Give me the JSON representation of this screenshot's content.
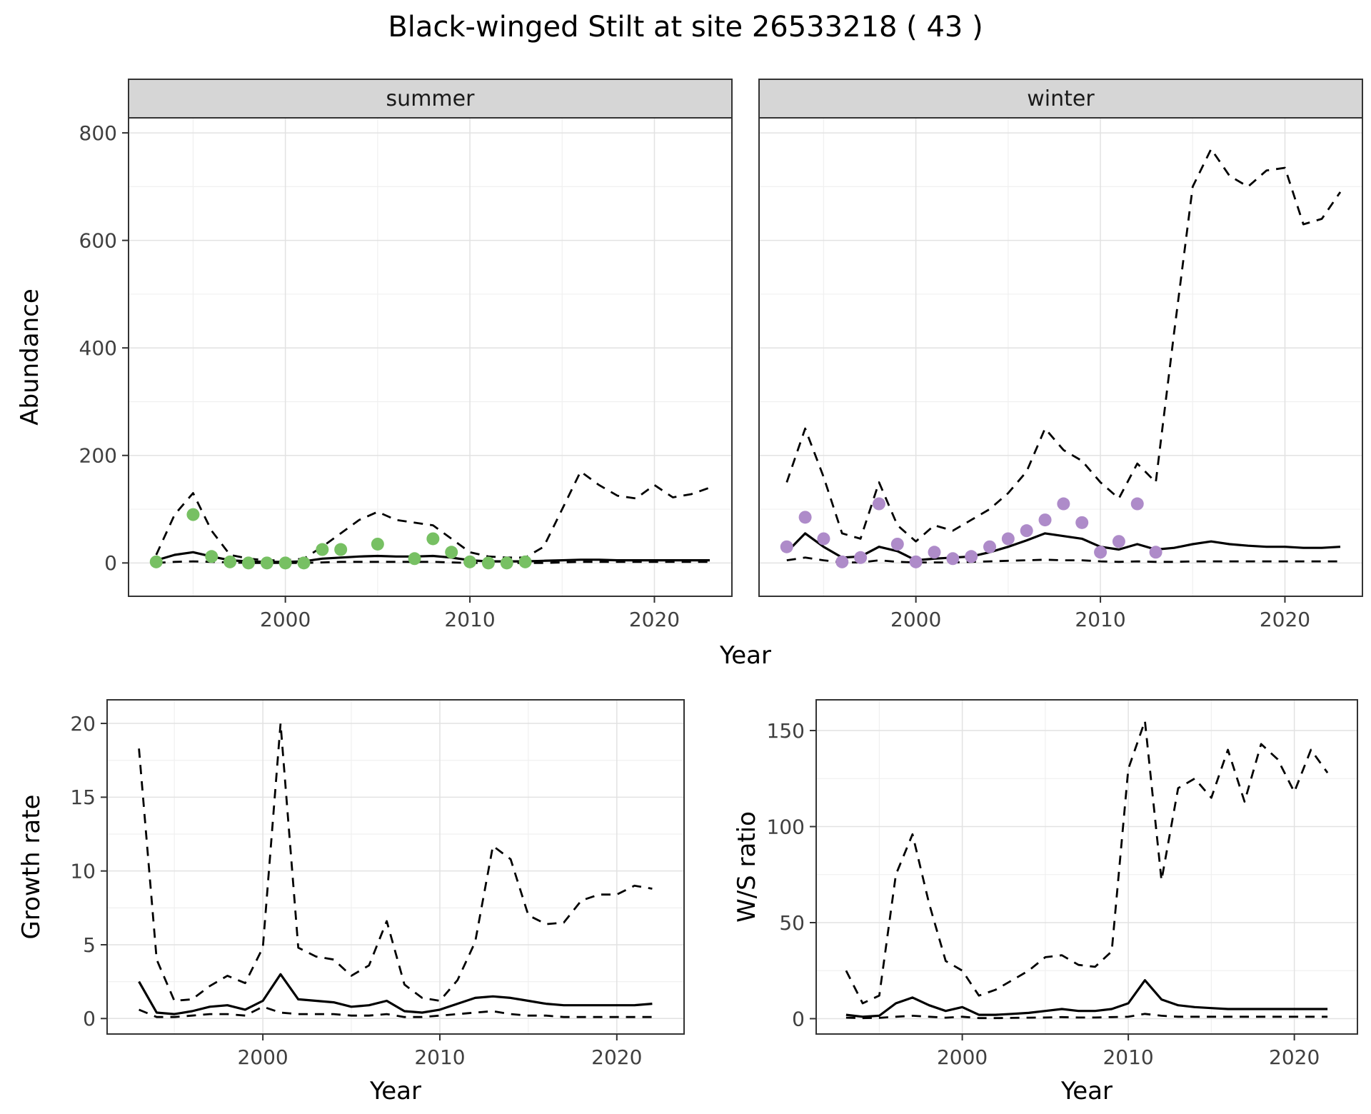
{
  "title": "Black-winged Stilt at site 26533218 ( 43 )",
  "colors": {
    "line": "#000000",
    "panel_border": "#333333",
    "strip_background": "#d6d6d6",
    "grid_major": "#e2e2e2",
    "grid_minor": "#f0f0f0",
    "summer_points": "#77c063",
    "winter_points": "#ae8bc9",
    "tick_label": "#404040"
  },
  "chart_data": [
    {
      "id": "abundance",
      "type": "line",
      "xlabel": "Year",
      "ylabel": "Abundance",
      "legend": "none",
      "grid": true,
      "xlim": [
        1991.5,
        2024.2
      ],
      "ylim": [
        -62,
        828
      ],
      "xticks": [
        2000,
        2010,
        2020
      ],
      "yticks": [
        0,
        200,
        400,
        600,
        800
      ],
      "xminor": [
        1995,
        2005,
        2015
      ],
      "yminor": [
        100,
        300,
        500,
        700
      ],
      "facets": [
        {
          "label": "summer",
          "point_color": "#77c063",
          "observed": {
            "years": [
              1993,
              1995,
              1996,
              1997,
              1998,
              1999,
              2000,
              2001,
              2002,
              2003,
              2005,
              2007,
              2008,
              2009,
              2010,
              2011,
              2012,
              2013
            ],
            "values": [
              2,
              90,
              12,
              2,
              0,
              0,
              0,
              0,
              25,
              25,
              35,
              8,
              45,
              20,
              2,
              0,
              0,
              2
            ]
          },
          "model_years": [
            1993,
            1994,
            1995,
            1996,
            1997,
            1998,
            1999,
            2000,
            2001,
            2002,
            2003,
            2004,
            2005,
            2006,
            2007,
            2008,
            2009,
            2010,
            2011,
            2012,
            2013,
            2014,
            2015,
            2016,
            2017,
            2018,
            2019,
            2020,
            2021,
            2022,
            2023
          ],
          "fitted": [
            5,
            15,
            20,
            12,
            5,
            3,
            2,
            2,
            3,
            8,
            10,
            12,
            13,
            12,
            12,
            13,
            10,
            5,
            3,
            3,
            3,
            4,
            5,
            6,
            6,
            5,
            5,
            5,
            5,
            5,
            5
          ],
          "upper_ci": [
            15,
            90,
            130,
            60,
            15,
            8,
            5,
            5,
            8,
            30,
            55,
            80,
            95,
            80,
            75,
            70,
            45,
            20,
            12,
            10,
            10,
            30,
            100,
            170,
            145,
            125,
            120,
            145,
            122,
            128,
            140
          ],
          "lower_ci": [
            0,
            2,
            3,
            2,
            1,
            0,
            0,
            0,
            0,
            1,
            2,
            2,
            2,
            2,
            2,
            2,
            1,
            0,
            0,
            0,
            0,
            0,
            1,
            2,
            2,
            2,
            2,
            2,
            2,
            2,
            2
          ]
        },
        {
          "label": "winter",
          "point_color": "#ae8bc9",
          "observed": {
            "years": [
              1993,
              1994,
              1995,
              1996,
              1997,
              1998,
              1999,
              2000,
              2001,
              2002,
              2003,
              2004,
              2005,
              2006,
              2007,
              2008,
              2009,
              2010,
              2011,
              2012,
              2013
            ],
            "values": [
              30,
              85,
              45,
              2,
              10,
              110,
              35,
              2,
              20,
              8,
              12,
              30,
              45,
              60,
              80,
              110,
              75,
              20,
              40,
              110,
              20
            ]
          },
          "model_years": [
            1993,
            1994,
            1995,
            1996,
            1997,
            1998,
            1999,
            2000,
            2001,
            2002,
            2003,
            2004,
            2005,
            2006,
            2007,
            2008,
            2009,
            2010,
            2011,
            2012,
            2013,
            2014,
            2015,
            2016,
            2017,
            2018,
            2019,
            2020,
            2021,
            2022,
            2023
          ],
          "fitted": [
            20,
            55,
            30,
            10,
            12,
            30,
            22,
            5,
            8,
            10,
            12,
            20,
            30,
            42,
            55,
            50,
            45,
            30,
            25,
            35,
            25,
            28,
            35,
            40,
            35,
            32,
            30,
            30,
            28,
            28,
            30
          ],
          "upper_ci": [
            150,
            250,
            160,
            55,
            45,
            150,
            70,
            40,
            70,
            60,
            80,
            100,
            130,
            170,
            250,
            210,
            190,
            150,
            120,
            185,
            150,
            430,
            700,
            770,
            720,
            700,
            730,
            735,
            630,
            640,
            690
          ],
          "lower_ci": [
            5,
            10,
            5,
            1,
            1,
            5,
            2,
            1,
            1,
            1,
            2,
            3,
            4,
            5,
            6,
            5,
            5,
            3,
            2,
            3,
            2,
            2,
            3,
            3,
            3,
            3,
            3,
            3,
            3,
            3,
            3
          ]
        }
      ]
    },
    {
      "id": "growth_rate",
      "type": "line",
      "xlabel": "Year",
      "ylabel": "Growth rate",
      "legend": "none",
      "grid": true,
      "xlim": [
        1991.2,
        2023.8
      ],
      "ylim": [
        -1.05,
        21.6
      ],
      "xticks": [
        2000,
        2010,
        2020
      ],
      "yticks": [
        0,
        5,
        10,
        15,
        20
      ],
      "xminor": [
        1995,
        2005,
        2015
      ],
      "yminor": [
        2.5,
        7.5,
        12.5,
        17.5
      ],
      "years": [
        1993,
        1994,
        1995,
        1996,
        1997,
        1998,
        1999,
        2000,
        2001,
        2002,
        2003,
        2004,
        2005,
        2006,
        2007,
        2008,
        2009,
        2010,
        2011,
        2012,
        2013,
        2014,
        2015,
        2016,
        2017,
        2018,
        2019,
        2020,
        2021,
        2022
      ],
      "series": [
        {
          "name": "upper_ci",
          "style": "dashed",
          "values": [
            18.3,
            4.0,
            1.2,
            1.3,
            2.2,
            2.9,
            2.4,
            4.8,
            20.0,
            4.8,
            4.2,
            4.0,
            2.9,
            3.6,
            6.6,
            2.3,
            1.4,
            1.2,
            2.6,
            5.2,
            11.7,
            10.8,
            7.0,
            6.4,
            6.5,
            8.0,
            8.4,
            8.4,
            9.0,
            8.8
          ]
        },
        {
          "name": "fitted",
          "style": "solid",
          "values": [
            2.5,
            0.4,
            0.3,
            0.5,
            0.8,
            0.9,
            0.6,
            1.2,
            3.0,
            1.3,
            1.2,
            1.1,
            0.8,
            0.9,
            1.2,
            0.5,
            0.4,
            0.6,
            1.0,
            1.4,
            1.5,
            1.4,
            1.2,
            1.0,
            0.9,
            0.9,
            0.9,
            0.9,
            0.9,
            1.0
          ]
        },
        {
          "name": "lower_ci",
          "style": "dashed",
          "values": [
            0.6,
            0.1,
            0.1,
            0.2,
            0.3,
            0.3,
            0.2,
            0.8,
            0.4,
            0.3,
            0.3,
            0.3,
            0.2,
            0.2,
            0.3,
            0.1,
            0.1,
            0.2,
            0.3,
            0.4,
            0.5,
            0.3,
            0.2,
            0.2,
            0.1,
            0.1,
            0.1,
            0.1,
            0.1,
            0.1
          ]
        }
      ]
    },
    {
      "id": "ws_ratio",
      "type": "line",
      "xlabel": "Year",
      "ylabel": "W/S ratio",
      "legend": "none",
      "grid": true,
      "xlim": [
        1991.2,
        2023.8
      ],
      "ylim": [
        -8,
        166
      ],
      "xticks": [
        2000,
        2010,
        2020
      ],
      "yticks": [
        0,
        50,
        100,
        150
      ],
      "xminor": [
        1995,
        2005,
        2015
      ],
      "yminor": [
        25,
        75,
        125
      ],
      "years": [
        1993,
        1994,
        1995,
        1996,
        1997,
        1998,
        1999,
        2000,
        2001,
        2002,
        2003,
        2004,
        2005,
        2006,
        2007,
        2008,
        2009,
        2010,
        2011,
        2012,
        2013,
        2014,
        2015,
        2016,
        2017,
        2018,
        2019,
        2020,
        2021,
        2022
      ],
      "series": [
        {
          "name": "upper_ci",
          "style": "dashed",
          "values": [
            25,
            8,
            12,
            75,
            96,
            60,
            30,
            25,
            12,
            15,
            20,
            25,
            32,
            33,
            28,
            27,
            35,
            130,
            155,
            72,
            120,
            125,
            115,
            140,
            113,
            143,
            135,
            118,
            140,
            128
          ]
        },
        {
          "name": "fitted",
          "style": "solid",
          "values": [
            2,
            1,
            1.5,
            8,
            11,
            7,
            4,
            6,
            2,
            2,
            2.5,
            3,
            4,
            5,
            4,
            4,
            5,
            8,
            20,
            10,
            7,
            6,
            5.5,
            5,
            5,
            5,
            5,
            5,
            5,
            5
          ]
        },
        {
          "name": "lower_ci",
          "style": "dashed",
          "values": [
            0.5,
            0.3,
            0.4,
            1,
            1.5,
            1,
            0.5,
            1,
            0.3,
            0.3,
            0.4,
            0.5,
            0.6,
            0.8,
            0.6,
            0.6,
            0.8,
            1,
            2.5,
            1.5,
            1,
            1,
            1,
            1,
            1,
            1,
            1,
            1,
            1,
            1
          ]
        }
      ]
    }
  ]
}
